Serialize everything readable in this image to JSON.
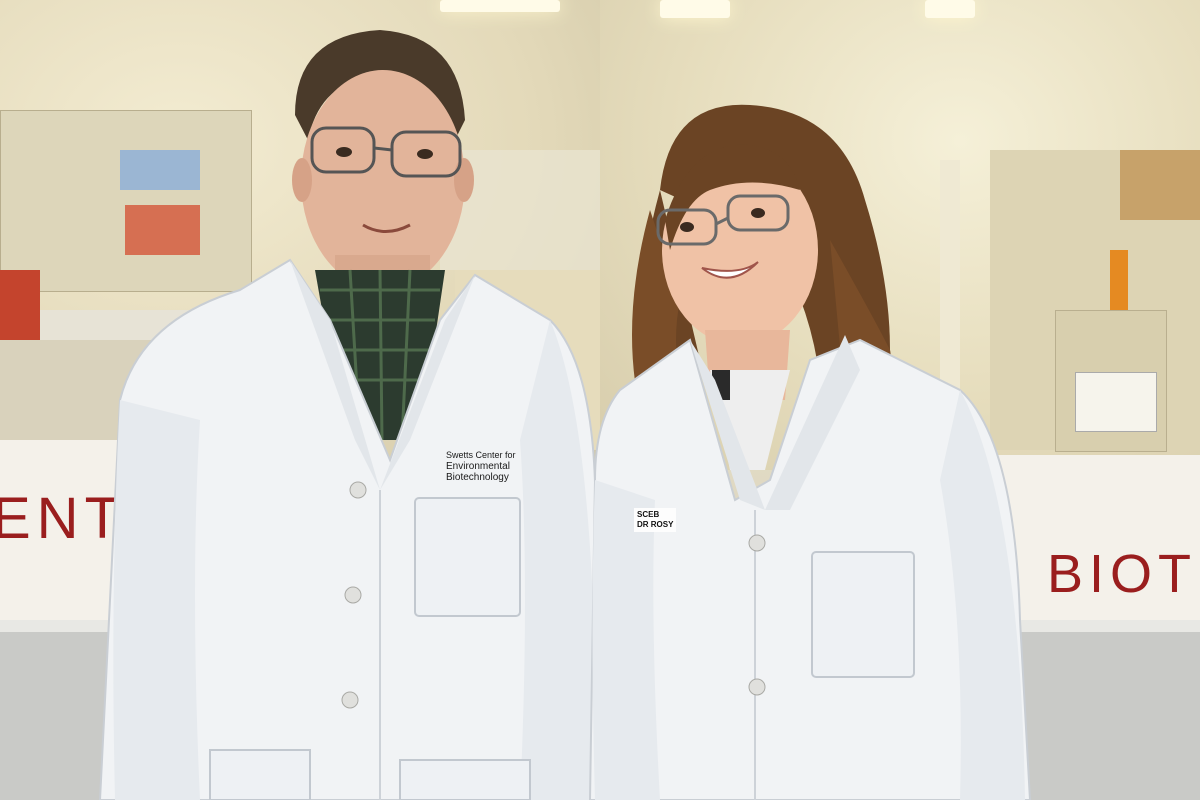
{
  "scene": {
    "signage_left_text": "ENT",
    "signage_right_text": "BIOT",
    "man_coat_embroidery": [
      "Swetts Center for",
      "Environmental",
      "Biotechnology"
    ],
    "woman_badge_lines": [
      "SCEB",
      "DR ROSY"
    ]
  },
  "colors": {
    "sign_red": "#9a1e1e",
    "lab_coat": "#f1f3f5",
    "wall_warm": "#efe6c8"
  }
}
